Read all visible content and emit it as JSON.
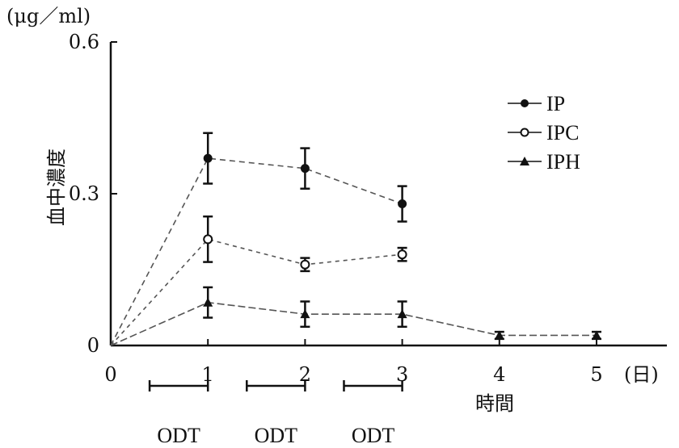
{
  "chart_data": {
    "type": "line",
    "y_unit": "(μg／ml)",
    "ylabel": "血中濃度",
    "xlabel": "時間",
    "x_unit": "(日)",
    "ylim": [
      0,
      0.6
    ],
    "xlim": [
      0,
      5
    ],
    "y_ticks": [
      {
        "value": 0,
        "label": "0"
      },
      {
        "value": 0.3,
        "label": "0.3"
      },
      {
        "value": 0.6,
        "label": "0.6"
      }
    ],
    "x_ticks": [
      {
        "value": 0,
        "label": "0"
      },
      {
        "value": 1,
        "label": "1"
      },
      {
        "value": 2,
        "label": "2"
      },
      {
        "value": 3,
        "label": "3"
      },
      {
        "value": 4,
        "label": "4"
      },
      {
        "value": 5,
        "label": "5"
      }
    ],
    "legend_position": "top-right",
    "series": [
      {
        "name": "IP",
        "marker": "filled-circle",
        "points": [
          {
            "x": 1,
            "y": 0.37,
            "err": 0.05
          },
          {
            "x": 2,
            "y": 0.35,
            "err": 0.04
          },
          {
            "x": 3,
            "y": 0.28,
            "err": 0.035
          }
        ]
      },
      {
        "name": "IPC",
        "marker": "open-circle",
        "points": [
          {
            "x": 1,
            "y": 0.21,
            "err": 0.045
          },
          {
            "x": 2,
            "y": 0.16,
            "err": 0.013
          },
          {
            "x": 3,
            "y": 0.18,
            "err": 0.013
          }
        ]
      },
      {
        "name": "IPH",
        "marker": "filled-triangle",
        "points": [
          {
            "x": 1,
            "y": 0.085,
            "err": 0.03
          },
          {
            "x": 2,
            "y": 0.062,
            "err": 0.025
          },
          {
            "x": 3,
            "y": 0.062,
            "err": 0.025
          },
          {
            "x": 4,
            "y": 0.02,
            "err": 0.007
          },
          {
            "x": 5,
            "y": 0.02,
            "err": 0.007
          }
        ]
      }
    ],
    "odt_periods": [
      {
        "start": 0.4,
        "end": 1,
        "label": "ODT"
      },
      {
        "start": 1.4,
        "end": 2,
        "label": "ODT"
      },
      {
        "start": 2.4,
        "end": 3,
        "label": "ODT"
      }
    ]
  }
}
